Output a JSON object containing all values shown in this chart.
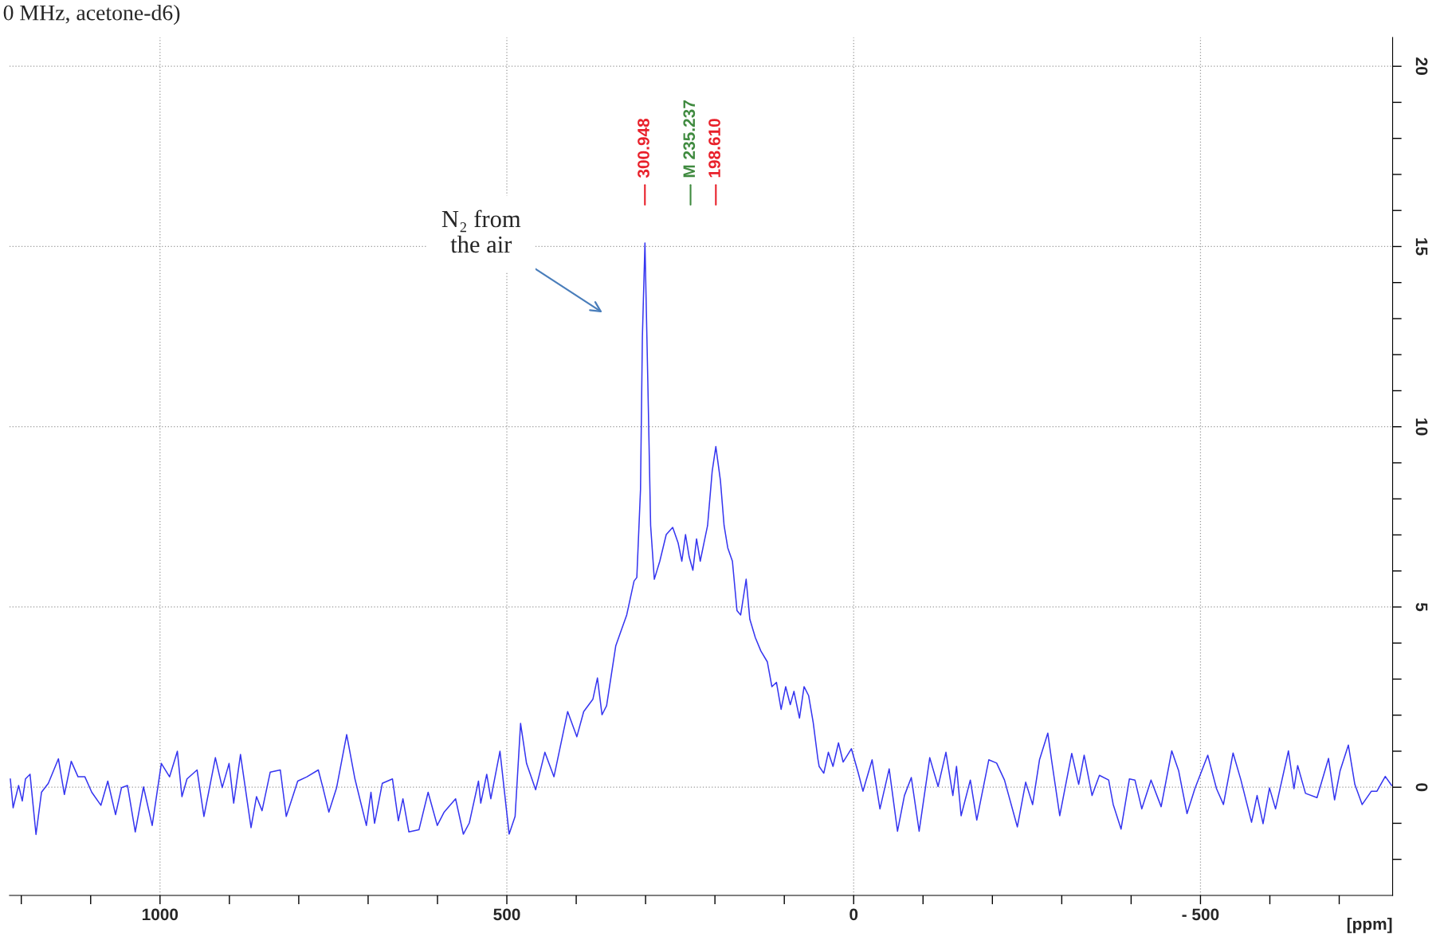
{
  "chart_data": {
    "type": "line",
    "title": "0 MHz, acetone-d6)",
    "xlabel": "[ppm]",
    "xlim": [
      1217,
      -777
    ],
    "ylim": [
      -3.0,
      20.8
    ],
    "xticks": [
      {
        "value": 1200,
        "label": null
      },
      {
        "value": 1100,
        "label": null
      },
      1000,
      {
        "value": 900,
        "label": null
      },
      {
        "value": 800,
        "label": null
      },
      {
        "value": 700,
        "label": null
      },
      {
        "value": 600,
        "label": null
      },
      500,
      {
        "value": 400,
        "label": null
      },
      {
        "value": 300,
        "label": null
      },
      {
        "value": 200,
        "label": null
      },
      {
        "value": 100,
        "label": null
      },
      0,
      {
        "value": -100,
        "label": null
      },
      {
        "value": -200,
        "label": null
      },
      {
        "value": -300,
        "label": null
      },
      {
        "value": -400,
        "label": null
      },
      {
        "value": -500,
        "label": "- 500"
      },
      {
        "value": -600,
        "label": null
      },
      {
        "value": -700,
        "label": null
      }
    ],
    "yticks": [
      {
        "value": -2,
        "label": null
      },
      {
        "value": -1,
        "label": null
      },
      0,
      {
        "value": 1,
        "label": null
      },
      {
        "value": 2,
        "label": null
      },
      {
        "value": 3,
        "label": null
      },
      {
        "value": 4,
        "label": null
      },
      5,
      {
        "value": 6,
        "label": null
      },
      {
        "value": 7,
        "label": null
      },
      {
        "value": 8,
        "label": null
      },
      {
        "value": 9,
        "label": null
      },
      10,
      {
        "value": 11,
        "label": null
      },
      {
        "value": 12,
        "label": null
      },
      {
        "value": 13,
        "label": null
      },
      {
        "value": 14,
        "label": null
      },
      15,
      {
        "value": 16,
        "label": null
      },
      {
        "value": 17,
        "label": null
      },
      {
        "value": 18,
        "label": null
      },
      {
        "value": 19,
        "label": null
      },
      20
    ],
    "grid": true,
    "marker": "none",
    "line_style": "solid",
    "series": [
      {
        "color": "#3535f0",
        "x": [
          1215.8,
          1211.8,
          1203.9,
          1198.6,
          1194.0,
          1187.4,
          1178.8,
          1170.9,
          1161.0,
          1146.5,
          1137.9,
          1128.0,
          1118.2,
          1108.3,
          1098.4,
          1085.2,
          1075.3,
          1064.1,
          1055.5,
          1046.9,
          1035.7,
          1023.8,
          1011.3,
          998.1,
          986.2,
          975.0,
          968.4,
          961.1,
          946.6,
          936.7,
          920.2,
          910.3,
          900.5,
          893.8,
          884.0,
          868.8,
          860.9,
          852.9,
          841.1,
          826.6,
          818.0,
          801.5,
          788.3,
          771.8,
          765.2,
          756.6,
          745.4,
          730.9,
          719.0,
          702.5,
          695.9,
          690.7,
          679.5,
          664.9,
          656.4,
          649.8,
          641.2,
          626.7,
          613.5,
          600.3,
          590.4,
          573.9,
          562.7,
          554.1,
          540.9,
          537.6,
          529.0,
          523.1,
          509.9,
          496.7,
          488.1,
          480.2,
          471.6,
          458.5,
          445.2,
          432.1,
          412.3,
          399.1,
          389.2,
          376.0,
          369.4,
          362.8,
          356.2,
          343.0,
          336.4,
          327.2,
          316.6,
          312.6,
          307.3,
          304.6,
          300.9,
          296.7,
          292.7,
          287.4,
          279.5,
          270.2,
          260.9,
          253.0,
          247.7,
          242.4,
          237.1,
          231.8,
          226.5,
          221.2,
          215.9,
          210.6,
          204.0,
          198.7,
          192.1,
          186.8,
          181.5,
          174.8,
          168.2,
          162.9,
          155.0,
          149.7,
          141.7,
          133.8,
          124.5,
          117.9,
          111.3,
          104.6,
          98.0,
          91.4,
          86.1,
          78.1,
          71.5,
          64.9,
          58.3,
          51.7,
          49.8,
          43.1,
          36.5,
          29.8,
          21.9,
          15.2,
          3.3,
          -6.7,
          -13.4,
          -26.6,
          -37.9,
          -51.2,
          -63.2,
          -73.2,
          -83.1,
          -94.4,
          -109.7,
          -121.7,
          -133.0,
          -143.0,
          -148.3,
          -154.9,
          -168.2,
          -177.5,
          -194.8,
          -206.1,
          -217.4,
          -236.0,
          -248.0,
          -258.0,
          -267.9,
          -279.9,
          -285.8,
          -297.1,
          -314.4,
          -324.4,
          -332.3,
          -343.7,
          -354.3,
          -367.6,
          -374.2,
          -385.5,
          -397.5,
          -405.5,
          -415.4,
          -428.7,
          -443.3,
          -458.6,
          -468.6,
          -480.6,
          -491.9,
          -510.5,
          -523.1,
          -533.1,
          -547.0,
          -558.3,
          -573.6,
          -581.6,
          -590.2,
          -599.5,
          -608.2,
          -626.8,
          -634.7,
          -640.1,
          -651.4,
          -668.0,
          -684.6,
          -693.3,
          -701.2,
          -713.2,
          -722.5,
          -733.1,
          -746.4,
          -754.4,
          -766.4,
          -775.6
        ],
        "values": [
          0.23,
          -0.57,
          0.05,
          -0.38,
          0.23,
          0.36,
          -1.31,
          -0.14,
          0.11,
          0.79,
          -0.2,
          0.72,
          0.29,
          0.29,
          -0.14,
          -0.5,
          0.17,
          -0.76,
          -0.01,
          0.05,
          -1.24,
          0.01,
          -1.06,
          0.66,
          0.29,
          1.0,
          -0.26,
          0.23,
          0.48,
          -0.81,
          0.82,
          -0.01,
          0.66,
          -0.44,
          0.91,
          -1.12,
          -0.26,
          -0.65,
          0.42,
          0.48,
          -0.81,
          0.17,
          0.29,
          0.48,
          -0.01,
          -0.69,
          -0.01,
          1.46,
          0.23,
          -1.06,
          -0.14,
          -1.0,
          0.11,
          0.23,
          -0.93,
          -0.32,
          -1.24,
          -1.18,
          -0.14,
          -1.06,
          -0.69,
          -0.32,
          -1.3,
          -0.99,
          0.17,
          -0.44,
          0.36,
          -0.32,
          1.0,
          -1.3,
          -0.81,
          1.77,
          0.66,
          -0.07,
          0.97,
          0.29,
          2.1,
          1.4,
          2.1,
          2.44,
          3.03,
          2.01,
          2.26,
          3.92,
          4.28,
          4.78,
          5.72,
          5.82,
          8.26,
          12.49,
          15.1,
          11.2,
          7.26,
          5.77,
          6.27,
          7.01,
          7.21,
          6.77,
          6.27,
          7.01,
          6.39,
          6.02,
          6.89,
          6.27,
          6.77,
          7.26,
          8.76,
          9.45,
          8.51,
          7.26,
          6.64,
          6.27,
          4.9,
          4.78,
          5.77,
          4.66,
          4.15,
          3.78,
          3.48,
          2.79,
          2.91,
          2.16,
          2.79,
          2.29,
          2.66,
          1.92,
          2.79,
          2.54,
          1.79,
          0.8,
          0.58,
          0.39,
          0.97,
          0.58,
          1.23,
          0.7,
          1.07,
          0.39,
          -0.11,
          0.76,
          -0.6,
          0.51,
          -1.22,
          -0.23,
          0.27,
          -1.22,
          0.82,
          0.02,
          0.97,
          -0.23,
          0.58,
          -0.79,
          0.2,
          -0.91,
          0.76,
          0.67,
          0.2,
          -1.1,
          0.14,
          -0.48,
          0.76,
          1.5,
          0.69,
          -0.79,
          0.94,
          0.08,
          0.89,
          -0.23,
          0.33,
          0.2,
          -0.48,
          -1.16,
          0.23,
          0.2,
          -0.6,
          0.2,
          -0.54,
          1.01,
          0.45,
          -0.73,
          -0.04,
          0.89,
          -0.04,
          -0.48,
          0.95,
          0.2,
          -0.97,
          -0.23,
          -1.01,
          -0.02,
          -0.6,
          1.01,
          -0.04,
          0.6,
          -0.17,
          -0.29,
          0.8,
          -0.35,
          0.45,
          1.17,
          0.08,
          -0.48,
          -0.11,
          -0.11,
          0.3,
          0.05
        ]
      }
    ],
    "annotations": [
      "300.948",
      "M 235.237",
      "198.610",
      "N₂ from\nthe air"
    ]
  }
}
